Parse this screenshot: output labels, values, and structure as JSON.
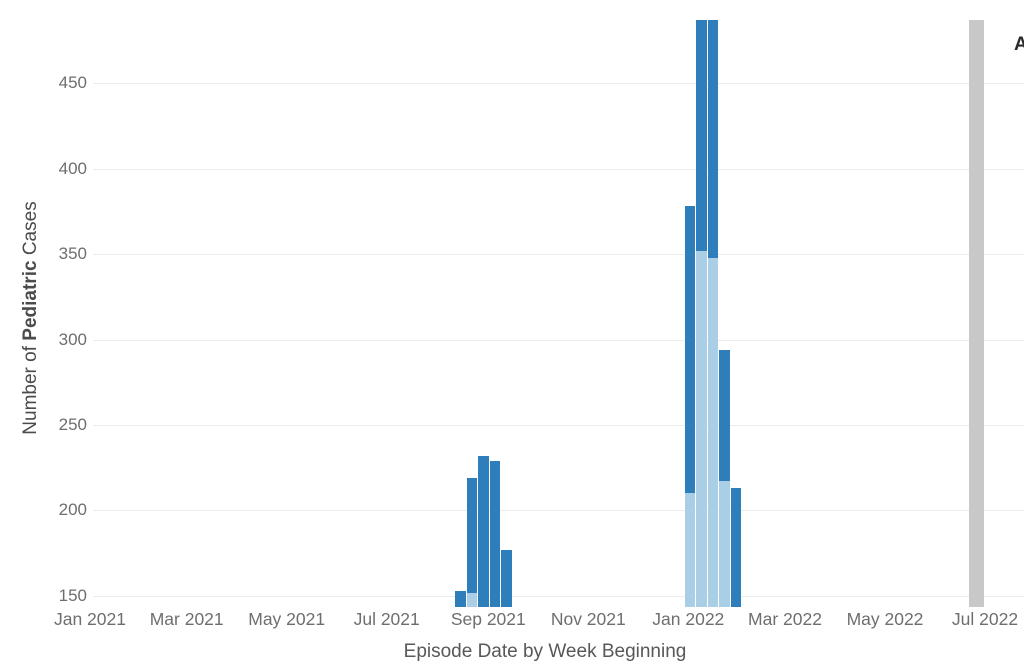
{
  "chart_data": {
    "type": "bar",
    "title": "",
    "xlabel": "Episode Date by Week Beginning",
    "ylabel_parts": {
      "prefix": "Number of ",
      "bold": "Pediatric",
      "suffix": " Cases"
    },
    "ylabel_full": "Number of Pediatric Cases",
    "y_ticks": [
      150,
      200,
      250,
      300,
      350,
      400,
      450
    ],
    "ylim": [
      143.5,
      487
    ],
    "grid": "horizontal light gray gridlines, no axis lines",
    "legend": {
      "visible_text": "A",
      "position": "top-right, cropped at image edge"
    },
    "colors": {
      "dark_blue": "#2E7EBC",
      "light_blue": "#A9CEE5",
      "gray": "#C8C8C8",
      "gridline": "#ECECEC",
      "tick_text": "#6E6E6E",
      "axis_title_text": "#585858"
    },
    "x_range_dates": [
      "2021-01-01",
      "2022-07-01"
    ],
    "x_ticks": [
      {
        "label": "Jan 2021",
        "date": "2021-01-01"
      },
      {
        "label": "Mar 2021",
        "date": "2021-03-01"
      },
      {
        "label": "May 2021",
        "date": "2021-05-01"
      },
      {
        "label": "Jul 2021",
        "date": "2021-07-01"
      },
      {
        "label": "Sep 2021",
        "date": "2021-09-01"
      },
      {
        "label": "Nov 2021",
        "date": "2021-11-01"
      },
      {
        "label": "Jan 2022",
        "date": "2022-01-01"
      },
      {
        "label": "Mar 2022",
        "date": "2022-03-01"
      },
      {
        "label": "May 2022",
        "date": "2022-05-01"
      },
      {
        "label": "Jul 2022",
        "date": "2022-07-01"
      }
    ],
    "bars_note": "Stacked weekly bars; light_top = top value of light-blue bottom segment; clipped bars exceed the visible axis (cut at top of plot); week dates estimated from axis position",
    "bars": [
      {
        "week": "2021-08-15",
        "total": 153,
        "light_top": null,
        "clipped": false,
        "fill": "blue"
      },
      {
        "week": "2021-08-22",
        "total": 219,
        "light_top": 152,
        "clipped": false,
        "fill": "blue"
      },
      {
        "week": "2021-08-29",
        "total": 232,
        "light_top": null,
        "clipped": false,
        "fill": "blue"
      },
      {
        "week": "2021-09-05",
        "total": 229,
        "light_top": null,
        "clipped": false,
        "fill": "blue"
      },
      {
        "week": "2021-09-12",
        "total": 177,
        "light_top": null,
        "clipped": false,
        "fill": "blue"
      },
      {
        "week": "2022-01-02",
        "total": 378,
        "light_top": 210,
        "clipped": false,
        "fill": "blue"
      },
      {
        "week": "2022-01-09",
        "total": null,
        "light_top": 352,
        "clipped": true,
        "fill": "blue"
      },
      {
        "week": "2022-01-16",
        "total": null,
        "light_top": 348,
        "clipped": true,
        "fill": "blue"
      },
      {
        "week": "2022-01-23",
        "total": 294,
        "light_top": 217,
        "clipped": false,
        "fill": "blue"
      },
      {
        "week": "2022-01-30",
        "total": 213,
        "light_top": null,
        "clipped": false,
        "fill": "blue"
      },
      {
        "week": "2022-06-26",
        "total": null,
        "light_top": null,
        "clipped": true,
        "fill": "gray"
      }
    ]
  }
}
